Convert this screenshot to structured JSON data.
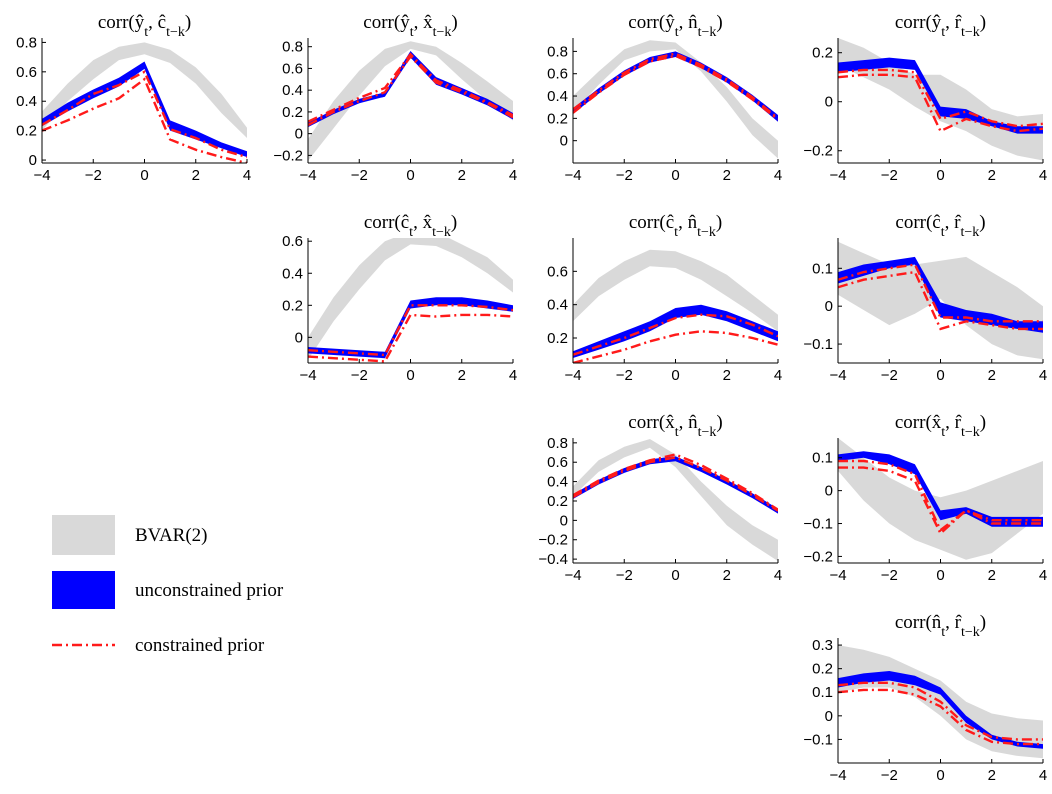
{
  "colors": {
    "bvar": "#d9d9d9",
    "unconstrained": "#0000ff",
    "constrained": "#ff1a1a"
  },
  "legend": {
    "items": [
      {
        "key": "bvar",
        "label": "BVAR(2)"
      },
      {
        "key": "unconstrained",
        "label": "unconstrained prior"
      },
      {
        "key": "constrained",
        "label": "constrained prior"
      }
    ]
  },
  "chart_data": [
    {
      "type": "area",
      "title": "corr(ŷ_t, ĉ_{t−k})",
      "x": [
        -4,
        -3,
        -2,
        -1,
        0,
        1,
        2,
        3,
        4
      ],
      "xlim": [
        -4,
        4
      ],
      "ylim": [
        -0.02,
        0.83
      ],
      "xticks": [
        -4,
        -2,
        0,
        2,
        4
      ],
      "yticks": [
        0,
        0.2,
        0.4,
        0.6,
        0.8
      ],
      "ytick_labels": [
        "0",
        "0.2",
        "0.4",
        "0.6",
        "0.8"
      ],
      "bvar_lo": [
        0.2,
        0.4,
        0.55,
        0.68,
        0.72,
        0.66,
        0.52,
        0.32,
        0.15
      ],
      "bvar_hi": [
        0.33,
        0.52,
        0.68,
        0.77,
        0.8,
        0.75,
        0.63,
        0.45,
        0.22
      ],
      "unc_lo": [
        0.23,
        0.33,
        0.42,
        0.5,
        0.62,
        0.2,
        0.14,
        0.08,
        0.02
      ],
      "unc_hi": [
        0.28,
        0.39,
        0.48,
        0.56,
        0.67,
        0.27,
        0.2,
        0.12,
        0.06
      ],
      "con_a": [
        0.24,
        0.34,
        0.45,
        0.51,
        0.6,
        0.21,
        0.15,
        0.07,
        0.02
      ],
      "con_b": [
        0.2,
        0.27,
        0.35,
        0.42,
        0.55,
        0.14,
        0.07,
        0.02,
        -0.02
      ]
    },
    {
      "type": "area",
      "title": "corr(ŷ_t, x̂_{t−k})",
      "x": [
        -4,
        -3,
        -2,
        -1,
        0,
        1,
        2,
        3,
        4
      ],
      "xlim": [
        -4,
        4
      ],
      "ylim": [
        -0.27,
        0.88
      ],
      "xticks": [
        -4,
        -2,
        0,
        2,
        4
      ],
      "yticks": [
        -0.2,
        0,
        0.2,
        0.4,
        0.6,
        0.8
      ],
      "ytick_labels": [
        "−0.2",
        "0",
        "0.2",
        "0.4",
        "0.6",
        "0.8"
      ],
      "bvar_lo": [
        -0.25,
        0.05,
        0.35,
        0.62,
        0.78,
        0.72,
        0.5,
        0.3,
        0.12
      ],
      "bvar_hi": [
        -0.05,
        0.3,
        0.58,
        0.78,
        0.85,
        0.8,
        0.65,
        0.48,
        0.3
      ],
      "unc_lo": [
        0.06,
        0.18,
        0.28,
        0.34,
        0.7,
        0.45,
        0.36,
        0.26,
        0.13
      ],
      "unc_hi": [
        0.1,
        0.22,
        0.32,
        0.38,
        0.76,
        0.52,
        0.42,
        0.32,
        0.19
      ],
      "con_a": [
        0.11,
        0.22,
        0.33,
        0.42,
        0.73,
        0.49,
        0.4,
        0.29,
        0.17
      ],
      "con_b": [
        0.08,
        0.2,
        0.3,
        0.38,
        0.71,
        0.47,
        0.38,
        0.28,
        0.15
      ]
    },
    {
      "type": "area",
      "title": "corr(ŷ_t, n̂_{t−k})",
      "x": [
        -4,
        -3,
        -2,
        -1,
        0,
        1,
        2,
        3,
        4
      ],
      "xlim": [
        -4,
        4
      ],
      "ylim": [
        -0.2,
        0.92
      ],
      "xticks": [
        -4,
        -2,
        0,
        2,
        4
      ],
      "yticks": [
        0,
        0.2,
        0.4,
        0.6,
        0.8
      ],
      "ytick_labels": [
        "0",
        "0.2",
        "0.4",
        "0.6",
        "0.8"
      ],
      "bvar_lo": [
        0.25,
        0.5,
        0.72,
        0.8,
        0.82,
        0.62,
        0.35,
        0.05,
        -0.16
      ],
      "bvar_hi": [
        0.4,
        0.62,
        0.82,
        0.9,
        0.88,
        0.7,
        0.48,
        0.2,
        0.0
      ],
      "unc_lo": [
        0.24,
        0.42,
        0.58,
        0.7,
        0.75,
        0.65,
        0.52,
        0.36,
        0.17
      ],
      "unc_hi": [
        0.29,
        0.47,
        0.63,
        0.75,
        0.8,
        0.7,
        0.57,
        0.41,
        0.23
      ],
      "con_a": [
        0.28,
        0.45,
        0.61,
        0.73,
        0.78,
        0.68,
        0.55,
        0.39,
        0.2
      ],
      "con_b": [
        0.25,
        0.43,
        0.59,
        0.71,
        0.76,
        0.66,
        0.53,
        0.37,
        0.19
      ]
    },
    {
      "type": "area",
      "title": "corr(ŷ_t, r̂_{t−k})",
      "x": [
        -4,
        -3,
        -2,
        -1,
        0,
        1,
        2,
        3,
        4
      ],
      "xlim": [
        -4,
        4
      ],
      "ylim": [
        -0.25,
        0.26
      ],
      "xticks": [
        -4,
        -2,
        0,
        2,
        4
      ],
      "yticks": [
        -0.2,
        0,
        0.2
      ],
      "ytick_labels": [
        "−0.2",
        "0",
        "0.2"
      ],
      "bvar_lo": [
        0.15,
        0.1,
        0.05,
        -0.02,
        -0.08,
        -0.12,
        -0.18,
        -0.22,
        -0.24
      ],
      "bvar_hi": [
        0.26,
        0.22,
        0.16,
        0.11,
        0.11,
        0.05,
        -0.03,
        -0.06,
        -0.05
      ],
      "unc_lo": [
        0.12,
        0.13,
        0.14,
        0.13,
        -0.06,
        -0.07,
        -0.1,
        -0.13,
        -0.13
      ],
      "unc_hi": [
        0.16,
        0.17,
        0.18,
        0.17,
        -0.02,
        -0.03,
        -0.08,
        -0.1,
        -0.1
      ],
      "con_a": [
        0.12,
        0.13,
        0.13,
        0.12,
        -0.07,
        -0.04,
        -0.08,
        -0.1,
        -0.09
      ],
      "con_b": [
        0.1,
        0.11,
        0.11,
        0.1,
        -0.12,
        -0.07,
        -0.1,
        -0.12,
        -0.11
      ]
    },
    {
      "type": "area",
      "title": "corr(ĉ_t, x̂_{t−k})",
      "x": [
        -4,
        -3,
        -2,
        -1,
        0,
        1,
        2,
        3,
        4
      ],
      "xlim": [
        -4,
        4
      ],
      "ylim": [
        -0.16,
        0.62
      ],
      "xticks": [
        -4,
        -2,
        0,
        2,
        4
      ],
      "yticks": [
        0,
        0.2,
        0.4,
        0.6
      ],
      "ytick_labels": [
        "0",
        "0.2",
        "0.4",
        "0.6"
      ],
      "bvar_lo": [
        -0.14,
        0.1,
        0.3,
        0.48,
        0.58,
        0.57,
        0.5,
        0.4,
        0.28
      ],
      "bvar_hi": [
        0.0,
        0.25,
        0.45,
        0.6,
        0.66,
        0.66,
        0.58,
        0.5,
        0.36
      ],
      "unc_lo": [
        -0.1,
        -0.11,
        -0.12,
        -0.13,
        0.18,
        0.2,
        0.2,
        0.18,
        0.16
      ],
      "unc_hi": [
        -0.06,
        -0.07,
        -0.08,
        -0.09,
        0.23,
        0.25,
        0.25,
        0.23,
        0.2
      ],
      "con_a": [
        -0.08,
        -0.09,
        -0.1,
        -0.11,
        0.2,
        0.2,
        0.2,
        0.19,
        0.17
      ],
      "con_b": [
        -0.12,
        -0.13,
        -0.14,
        -0.15,
        0.14,
        0.13,
        0.14,
        0.14,
        0.13
      ]
    },
    {
      "type": "area",
      "title": "corr(ĉ_t, n̂_{t−k})",
      "x": [
        -4,
        -3,
        -2,
        -1,
        0,
        1,
        2,
        3,
        4
      ],
      "xlim": [
        -4,
        4
      ],
      "ylim": [
        0.05,
        0.8
      ],
      "xticks": [
        -4,
        -2,
        0,
        2,
        4
      ],
      "yticks": [
        0.2,
        0.4,
        0.6
      ],
      "ytick_labels": [
        "0.2",
        "0.4",
        "0.6"
      ],
      "bvar_lo": [
        0.3,
        0.45,
        0.55,
        0.63,
        0.62,
        0.55,
        0.45,
        0.35,
        0.24
      ],
      "bvar_hi": [
        0.4,
        0.56,
        0.66,
        0.73,
        0.72,
        0.66,
        0.58,
        0.46,
        0.34
      ],
      "unc_lo": [
        0.08,
        0.13,
        0.18,
        0.24,
        0.32,
        0.34,
        0.3,
        0.24,
        0.18
      ],
      "unc_hi": [
        0.12,
        0.18,
        0.24,
        0.3,
        0.38,
        0.4,
        0.36,
        0.3,
        0.24
      ],
      "con_a": [
        0.1,
        0.15,
        0.2,
        0.26,
        0.32,
        0.34,
        0.33,
        0.28,
        0.21
      ],
      "con_b": [
        0.05,
        0.09,
        0.13,
        0.18,
        0.22,
        0.24,
        0.23,
        0.2,
        0.16
      ]
    },
    {
      "type": "area",
      "title": "corr(ĉ_t, r̂_{t−k})",
      "x": [
        -4,
        -3,
        -2,
        -1,
        0,
        1,
        2,
        3,
        4
      ],
      "xlim": [
        -4,
        4
      ],
      "ylim": [
        -0.15,
        0.18
      ],
      "xticks": [
        -4,
        -2,
        0,
        2,
        4
      ],
      "yticks": [
        -0.1,
        0,
        0.1
      ],
      "ytick_labels": [
        "−0.1",
        "0",
        "0.1"
      ],
      "bvar_lo": [
        0.03,
        -0.01,
        -0.05,
        -0.02,
        0.02,
        -0.05,
        -0.1,
        -0.13,
        -0.14
      ],
      "bvar_hi": [
        0.17,
        0.14,
        0.11,
        0.11,
        0.12,
        0.13,
        0.09,
        0.05,
        0.0
      ],
      "unc_lo": [
        0.06,
        0.08,
        0.1,
        0.11,
        -0.03,
        -0.04,
        -0.05,
        -0.06,
        -0.07
      ],
      "unc_hi": [
        0.09,
        0.11,
        0.12,
        0.13,
        0.01,
        -0.01,
        -0.02,
        -0.04,
        -0.04
      ],
      "con_a": [
        0.07,
        0.09,
        0.1,
        0.11,
        -0.03,
        -0.03,
        -0.04,
        -0.04,
        -0.04
      ],
      "con_b": [
        0.05,
        0.07,
        0.08,
        0.09,
        -0.06,
        -0.04,
        -0.05,
        -0.06,
        -0.06
      ]
    },
    {
      "type": "area",
      "title": "corr(x̂_t, n̂_{t−k})",
      "x": [
        -4,
        -3,
        -2,
        -1,
        0,
        1,
        2,
        3,
        4
      ],
      "xlim": [
        -4,
        4
      ],
      "ylim": [
        -0.44,
        0.85
      ],
      "xticks": [
        -4,
        -2,
        0,
        2,
        4
      ],
      "yticks": [
        -0.4,
        -0.2,
        0,
        0.2,
        0.4,
        0.6,
        0.8
      ],
      "ytick_labels": [
        "−0.4",
        "−0.2",
        "0",
        "0.2",
        "0.4",
        "0.6",
        "0.8"
      ],
      "bvar_lo": [
        0.25,
        0.5,
        0.65,
        0.75,
        0.55,
        0.25,
        -0.05,
        -0.25,
        -0.42
      ],
      "bvar_hi": [
        0.35,
        0.62,
        0.76,
        0.84,
        0.68,
        0.4,
        0.15,
        -0.05,
        -0.2
      ],
      "unc_lo": [
        0.22,
        0.37,
        0.49,
        0.58,
        0.61,
        0.5,
        0.37,
        0.23,
        0.07
      ],
      "unc_hi": [
        0.27,
        0.42,
        0.54,
        0.63,
        0.66,
        0.55,
        0.42,
        0.28,
        0.12
      ],
      "con_a": [
        0.26,
        0.41,
        0.53,
        0.62,
        0.68,
        0.57,
        0.43,
        0.28,
        0.11
      ],
      "con_b": [
        0.24,
        0.39,
        0.51,
        0.6,
        0.65,
        0.54,
        0.41,
        0.26,
        0.1
      ]
    },
    {
      "type": "area",
      "title": "corr(x̂_t, r̂_{t−k})",
      "x": [
        -4,
        -3,
        -2,
        -1,
        0,
        1,
        2,
        3,
        4
      ],
      "xlim": [
        -4,
        4
      ],
      "ylim": [
        -0.22,
        0.16
      ],
      "xticks": [
        -4,
        -2,
        0,
        2,
        4
      ],
      "yticks": [
        -0.2,
        -0.1,
        0,
        0.1
      ],
      "ytick_labels": [
        "−0.2",
        "−0.1",
        "0",
        "0.1"
      ],
      "bvar_lo": [
        0.06,
        -0.03,
        -0.1,
        -0.15,
        -0.18,
        -0.21,
        -0.19,
        -0.13,
        -0.07
      ],
      "bvar_hi": [
        0.16,
        0.1,
        0.04,
        0.0,
        -0.02,
        0.0,
        0.03,
        0.06,
        0.09
      ],
      "unc_lo": [
        0.09,
        0.1,
        0.08,
        0.05,
        -0.09,
        -0.07,
        -0.11,
        -0.11,
        -0.11
      ],
      "unc_hi": [
        0.11,
        0.12,
        0.11,
        0.08,
        -0.06,
        -0.05,
        -0.08,
        -0.08,
        -0.08
      ],
      "con_a": [
        0.09,
        0.09,
        0.08,
        0.05,
        -0.12,
        -0.06,
        -0.09,
        -0.09,
        -0.09
      ],
      "con_b": [
        0.07,
        0.07,
        0.06,
        0.03,
        -0.13,
        -0.06,
        -0.1,
        -0.1,
        -0.1
      ]
    },
    {
      "type": "area",
      "title": "corr(n̂_t, r̂_{t−k})",
      "x": [
        -4,
        -3,
        -2,
        -1,
        0,
        1,
        2,
        3,
        4
      ],
      "xlim": [
        -4,
        4
      ],
      "ylim": [
        -0.2,
        0.33
      ],
      "xticks": [
        -4,
        -2,
        0,
        2,
        4
      ],
      "yticks": [
        -0.1,
        0,
        0.1,
        0.2,
        0.3
      ],
      "ytick_labels": [
        "−0.1",
        "0",
        "0.1",
        "0.2",
        "0.3"
      ],
      "bvar_lo": [
        0.1,
        0.12,
        0.12,
        0.08,
        0.0,
        -0.1,
        -0.15,
        -0.17,
        -0.18
      ],
      "bvar_hi": [
        0.3,
        0.28,
        0.25,
        0.2,
        0.15,
        0.06,
        0.01,
        -0.01,
        -0.02
      ],
      "unc_lo": [
        0.12,
        0.14,
        0.15,
        0.13,
        0.09,
        -0.03,
        -0.1,
        -0.13,
        -0.14
      ],
      "unc_hi": [
        0.16,
        0.18,
        0.19,
        0.17,
        0.12,
        0.0,
        -0.08,
        -0.11,
        -0.12
      ],
      "con_a": [
        0.13,
        0.14,
        0.14,
        0.12,
        0.06,
        -0.04,
        -0.09,
        -0.1,
        -0.1
      ],
      "con_b": [
        0.1,
        0.11,
        0.11,
        0.09,
        0.04,
        -0.06,
        -0.11,
        -0.12,
        -0.12
      ]
    }
  ]
}
